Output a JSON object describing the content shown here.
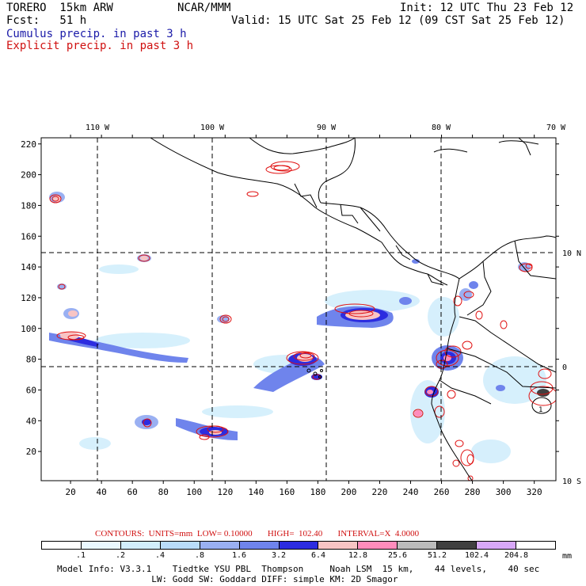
{
  "header": {
    "model": "TORERO  15km ARW",
    "org": "NCAR/MMM",
    "init": "Init: 12 UTC Thu 23 Feb 12",
    "fcst": "Fcst:   51 h",
    "valid": "Valid: 15 UTC Sat 25 Feb 12 (09 CST Sat 25 Feb 12)",
    "cumulus": "Cumulus precip. in past 3 h",
    "explicit": "Explicit precip. in past 3 h"
  },
  "map": {
    "top_lon_labels": [
      "110 W",
      "100 W",
      "90 W",
      "80 W",
      "70 W"
    ],
    "right_lat_labels": [
      "10 N",
      "0",
      "10 S"
    ],
    "x_ticks": [
      "20",
      "40",
      "60",
      "80",
      "100",
      "120",
      "140",
      "160",
      "180",
      "200",
      "220",
      "240",
      "260",
      "280",
      "300",
      "320"
    ],
    "y_ticks": [
      "20",
      "40",
      "60",
      "80",
      "100",
      "120",
      "140",
      "160",
      "180",
      "200",
      "220"
    ],
    "x_range": [
      1,
      334
    ],
    "y_range": [
      1,
      224
    ],
    "blob_label": "1"
  },
  "contours_line": "CONTOURS:  UNITS=mm  LOW= 0.10000       HIGH=  102.40       INTERVAL=X  4.0000",
  "legend": {
    "labels": [
      ".1",
      ".2",
      ".4",
      ".8",
      "1.6",
      "3.2",
      "6.4",
      "12.8",
      "25.6",
      "51.2",
      "102.4",
      "204.8"
    ],
    "unit": "mm",
    "colors": [
      "#ffffff",
      "#eaf8ff",
      "#d2eefc",
      "#b9dcfa",
      "#9ab0f2",
      "#6f84ec",
      "#2c2ce0",
      "#f8c4c4",
      "#ff8cbc",
      "#bcbcbc",
      "#404040",
      "#d8a8f8",
      "#ffffff"
    ]
  },
  "footer": {
    "line1": "Model Info: V3.3.1    Tiedtke YSU PBL  Thompson     Noah LSM  15 km,    44 levels,    40 sec",
    "line2": "                  LW: Godd SW: Goddard DIFF: simple KM: 2D Smagor"
  }
}
